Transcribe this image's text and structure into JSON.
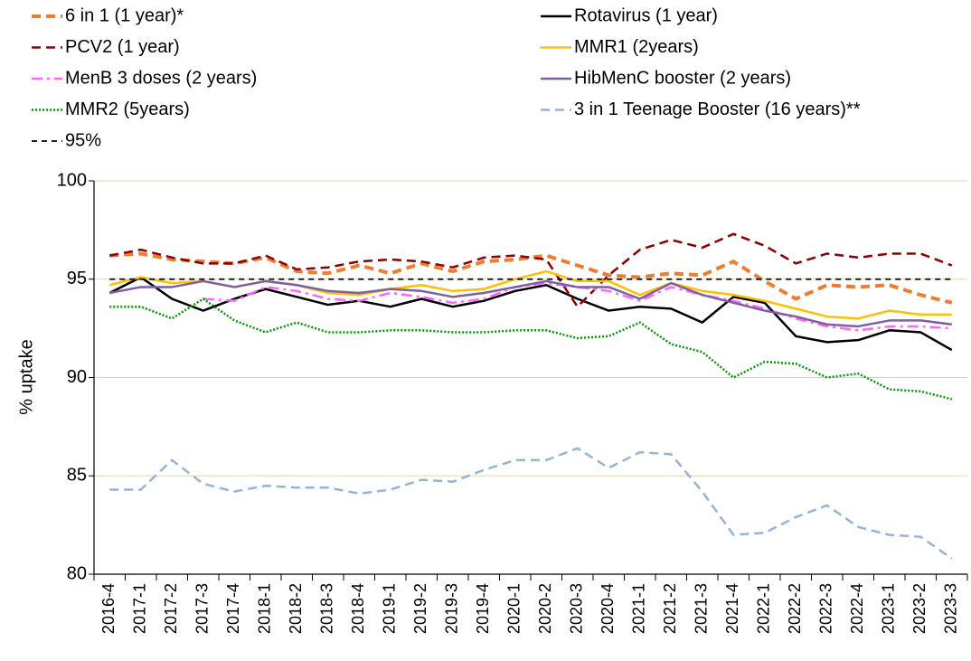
{
  "chart_data": {
    "type": "line",
    "y_label": "% uptake",
    "categories": [
      "2016-4",
      "2017-1",
      "2017-2",
      "2017-3",
      "2017-4",
      "2018-1",
      "2018-2",
      "2018-3",
      "2018-4",
      "2019-1",
      "2019-2",
      "2019-3",
      "2019-4",
      "2020-1",
      "2020-2",
      "2020-3",
      "2020-4",
      "2021-1",
      "2021-2",
      "2021-3",
      "2021-4",
      "2022-1",
      "2022-2",
      "2022-3",
      "2022-4",
      "2023-1",
      "2023-2",
      "2023-3"
    ],
    "ylim": [
      80,
      100
    ],
    "yticks": [
      80,
      85,
      90,
      95,
      100
    ],
    "grid": true,
    "series": [
      {
        "name": "6 in 1 (1 year)*",
        "color": "#ED7D31",
        "line_style": "dashed-thick",
        "values": [
          96.2,
          96.3,
          96.0,
          95.9,
          95.8,
          96.1,
          95.4,
          95.3,
          95.7,
          95.3,
          95.8,
          95.4,
          95.9,
          96.0,
          96.2,
          95.7,
          95.2,
          95.1,
          95.3,
          95.2,
          95.9,
          94.9,
          94.0,
          94.7,
          94.6,
          94.7,
          94.2,
          93.8
        ]
      },
      {
        "name": "Rotavirus (1 year)",
        "color": "#000000",
        "line_style": "solid",
        "values": [
          94.3,
          95.1,
          94.0,
          93.4,
          94.0,
          94.5,
          94.1,
          93.7,
          93.9,
          93.6,
          94.0,
          93.6,
          93.9,
          94.4,
          94.7,
          94.0,
          93.4,
          93.6,
          93.5,
          92.8,
          94.1,
          93.8,
          92.1,
          91.8,
          91.9,
          92.4,
          92.3,
          91.4
        ]
      },
      {
        "name": "PCV2 (1 year)",
        "color": "#8B0000",
        "line_style": "dashed",
        "values": [
          96.2,
          96.5,
          96.1,
          95.8,
          95.8,
          96.2,
          95.5,
          95.6,
          95.9,
          96.0,
          95.9,
          95.6,
          96.1,
          96.2,
          96.0,
          93.6,
          95.2,
          96.5,
          97.0,
          96.6,
          97.3,
          96.7,
          95.8,
          96.3,
          96.1,
          96.3,
          96.3,
          95.7
        ]
      },
      {
        "name": "MMR1 (2years)",
        "color": "#FFC000",
        "line_style": "solid",
        "values": [
          94.7,
          95.1,
          94.8,
          94.9,
          94.6,
          94.9,
          94.7,
          94.3,
          94.2,
          94.5,
          94.7,
          94.4,
          94.5,
          95.0,
          95.4,
          94.9,
          94.9,
          94.2,
          94.8,
          94.4,
          94.2,
          93.9,
          93.5,
          93.1,
          93.0,
          93.4,
          93.2,
          93.2
        ]
      },
      {
        "name": "MenB 3 doses (2 years)",
        "color": "#FF66FF",
        "line_style": "dash-dot",
        "values": [
          null,
          null,
          null,
          94.0,
          93.9,
          94.6,
          94.4,
          94.0,
          93.9,
          94.3,
          94.1,
          93.8,
          94.0,
          94.6,
          94.8,
          94.6,
          94.4,
          93.9,
          94.6,
          94.2,
          93.9,
          93.5,
          93.0,
          92.6,
          92.4,
          92.6,
          92.6,
          92.5
        ]
      },
      {
        "name": "HibMenC booster (2 years)",
        "color": "#7F5FA0",
        "line_style": "solid",
        "values": [
          94.3,
          94.6,
          94.6,
          94.9,
          94.6,
          94.9,
          94.7,
          94.4,
          94.3,
          94.5,
          94.4,
          94.1,
          94.3,
          94.6,
          94.9,
          94.6,
          94.6,
          94.0,
          94.8,
          94.2,
          93.8,
          93.4,
          93.1,
          92.7,
          92.6,
          92.9,
          92.9,
          92.7
        ]
      },
      {
        "name": "MMR2 (5years)",
        "color": "#009900",
        "line_style": "dotted",
        "values": [
          93.6,
          93.6,
          93.0,
          94.0,
          92.9,
          92.3,
          92.8,
          92.3,
          92.3,
          92.4,
          92.4,
          92.3,
          92.3,
          92.4,
          92.4,
          92.0,
          92.1,
          92.8,
          91.7,
          91.3,
          90.0,
          90.8,
          90.7,
          90.0,
          90.2,
          89.4,
          89.3,
          88.9
        ]
      },
      {
        "name": "3 in 1 Teenage Booster (16 years)**",
        "color": "#95B3D7",
        "line_style": "dashed",
        "values": [
          84.3,
          84.3,
          85.8,
          84.6,
          84.2,
          84.5,
          84.4,
          84.4,
          84.1,
          84.3,
          84.8,
          84.7,
          85.3,
          85.8,
          85.8,
          86.4,
          85.4,
          86.2,
          86.1,
          84.2,
          82.0,
          82.1,
          82.9,
          83.5,
          82.4,
          82.0,
          81.9,
          80.8
        ]
      },
      {
        "name": "95%",
        "color": "#000000",
        "line_style": "dashed-thin",
        "values": [
          95,
          95,
          95,
          95,
          95,
          95,
          95,
          95,
          95,
          95,
          95,
          95,
          95,
          95,
          95,
          95,
          95,
          95,
          95,
          95,
          95,
          95,
          95,
          95,
          95,
          95,
          95,
          95
        ]
      }
    ]
  }
}
